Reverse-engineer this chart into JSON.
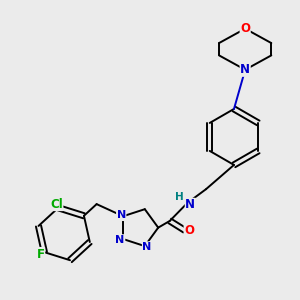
{
  "background_color": "#ebebeb",
  "bond_color": "#000000",
  "atom_colors": {
    "N": "#0000cc",
    "O": "#ff0000",
    "Cl": "#00aa00",
    "F": "#00aa00",
    "H": "#008080",
    "C": "#000000"
  },
  "font_size": 8.5,
  "line_width": 1.4
}
